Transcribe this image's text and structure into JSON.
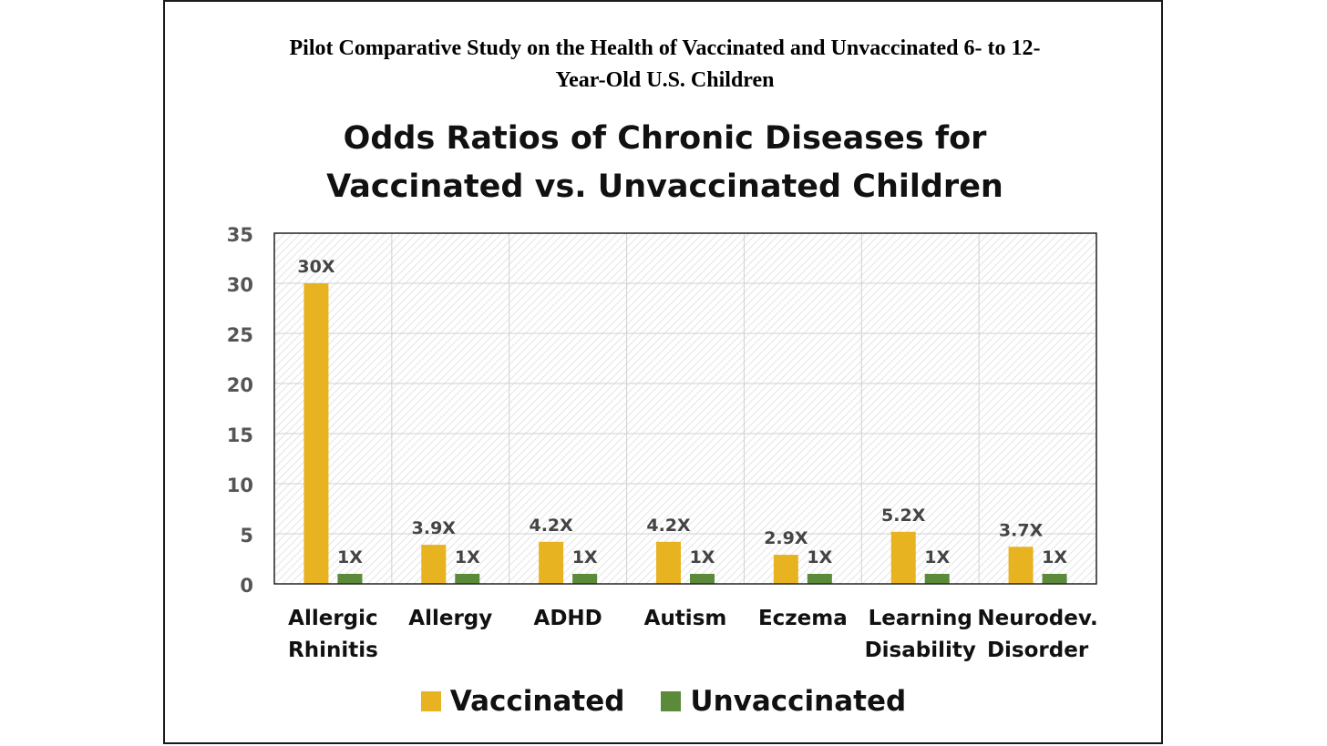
{
  "paper_title_line1": "Pilot Comparative Study on the Health of Vaccinated and Unvaccinated 6- to 12-",
  "paper_title_line2": "Year-Old U.S. Children",
  "colors": {
    "vaccinated": "#E8B321",
    "unvaccinated": "#5B8A3A"
  },
  "chart_data": {
    "type": "bar",
    "title_line1": "Odds Ratios of Chronic Diseases for",
    "title_line2": "Vaccinated vs. Unvaccinated Children",
    "categories": [
      [
        "Allergic",
        "Rhinitis"
      ],
      [
        "Allergy"
      ],
      [
        "ADHD"
      ],
      [
        "Autism"
      ],
      [
        "Eczema"
      ],
      [
        "Learning",
        "Disability"
      ],
      [
        "Neurodev.",
        "Disorder"
      ]
    ],
    "series": [
      {
        "name": "Vaccinated",
        "values": [
          30,
          3.9,
          4.2,
          4.2,
          2.9,
          5.2,
          3.7
        ],
        "labels": [
          "30X",
          "3.9X",
          "4.2X",
          "4.2X",
          "2.9X",
          "5.2X",
          "3.7X"
        ]
      },
      {
        "name": "Unvaccinated",
        "values": [
          1,
          1,
          1,
          1,
          1,
          1,
          1
        ],
        "labels": [
          "1X",
          "1X",
          "1X",
          "1X",
          "1X",
          "1X",
          "1X"
        ]
      }
    ],
    "ylim": [
      0,
      35
    ],
    "yticks": [
      0,
      5,
      10,
      15,
      20,
      25,
      30,
      35
    ],
    "grid": true,
    "legend": "bottom-center"
  }
}
